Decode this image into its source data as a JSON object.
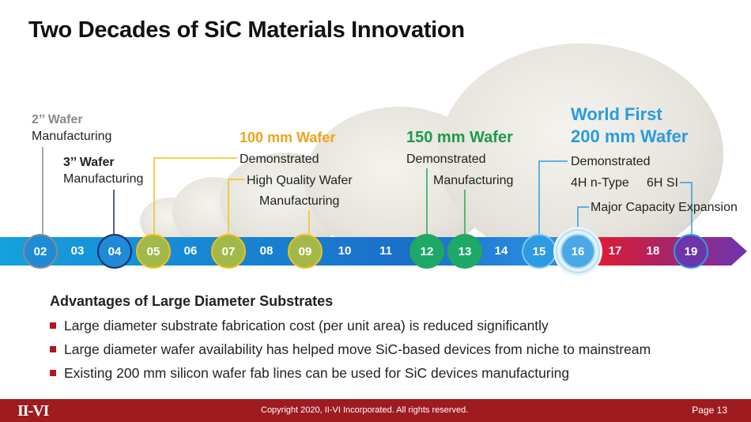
{
  "title": "Two Decades of SiC Materials Innovation",
  "milestones": {
    "wafer2_size": "2’’ Wafer",
    "wafer2_text": "Manufacturing",
    "wafer3_size": "3’’ Wafer",
    "wafer3_text": "Manufacturing",
    "wafer100_title": "100 mm Wafer",
    "wafer100_demo": "Demonstrated",
    "wafer100_hq": "High Quality Wafer",
    "wafer100_mfg": "Manufacturing",
    "wafer150_title": "150 mm Wafer",
    "wafer150_demo": "Demonstrated",
    "wafer150_mfg": "Manufacturing",
    "wafer200_title_line1": "World First",
    "wafer200_title_line2": "200 mm Wafer",
    "wafer200_demo": "Demonstrated",
    "wafer200_ntype": "4H n-Type",
    "wafer200_si": "6H SI",
    "wafer200_expansion": "Major Capacity Expansion"
  },
  "timeline": {
    "years": [
      "02",
      "03",
      "04",
      "05",
      "06",
      "07",
      "08",
      "09",
      "10",
      "11",
      "12",
      "13",
      "14",
      "15",
      "16",
      "17",
      "18",
      "19"
    ]
  },
  "advantages": {
    "title": "Advantages of Large Diameter Substrates",
    "bullets": [
      "Large diameter substrate fabrication cost (per unit area) is reduced significantly",
      "Large diameter wafer availability has helped move SiC-based devices from niche to mainstream",
      "Existing 200 mm silicon wafer fab lines can be used for SiC devices manufacturing"
    ]
  },
  "footer": {
    "logo": "II-VI",
    "copyright": "Copyright 2020, II-VI Incorporated. All rights reserved.",
    "page": "Page 13"
  },
  "colors": {
    "gray": "#8a8a8a",
    "navy": "#1b2c6e",
    "yellow": "#f2c11b",
    "green": "#26a65a",
    "lightblue": "#2e9ee6",
    "orange_text": "#f2a31b",
    "green_text": "#1e9a4a",
    "blue_text": "#2a9be0",
    "footer": "#9e1b1f",
    "bullet": "#b5161d"
  }
}
